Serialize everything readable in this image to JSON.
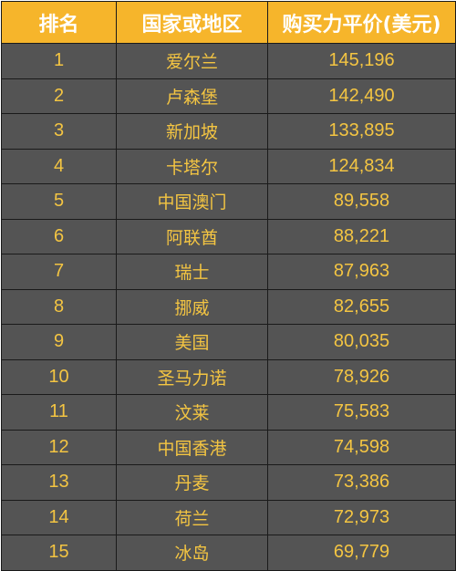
{
  "table": {
    "headers": [
      "排名",
      "国家或地区",
      "购买力平价(美元)"
    ],
    "rows": [
      {
        "rank": "1",
        "country": "爱尔兰",
        "value": "145,196"
      },
      {
        "rank": "2",
        "country": "卢森堡",
        "value": "142,490"
      },
      {
        "rank": "3",
        "country": "新加坡",
        "value": "133,895"
      },
      {
        "rank": "4",
        "country": "卡塔尔",
        "value": "124,834"
      },
      {
        "rank": "5",
        "country": "中国澳门",
        "value": "89,558"
      },
      {
        "rank": "6",
        "country": "阿联酋",
        "value": "88,221"
      },
      {
        "rank": "7",
        "country": "瑞士",
        "value": "87,963"
      },
      {
        "rank": "8",
        "country": "挪威",
        "value": "82,655"
      },
      {
        "rank": "9",
        "country": "美国",
        "value": "80,035"
      },
      {
        "rank": "10",
        "country": "圣马力诺",
        "value": "78,926"
      },
      {
        "rank": "11",
        "country": "汶莱",
        "value": "75,583"
      },
      {
        "rank": "12",
        "country": "中国香港",
        "value": "74,598"
      },
      {
        "rank": "13",
        "country": "丹麦",
        "value": "73,386"
      },
      {
        "rank": "14",
        "country": "荷兰",
        "value": "72,973"
      },
      {
        "rank": "15",
        "country": "冰岛",
        "value": "69,779"
      }
    ]
  },
  "colors": {
    "header_bg": "#f6b52b",
    "header_text": "#ffffff",
    "row_bg": "#545454",
    "row_text": "#f4c542",
    "border": "#1a1a1a"
  }
}
